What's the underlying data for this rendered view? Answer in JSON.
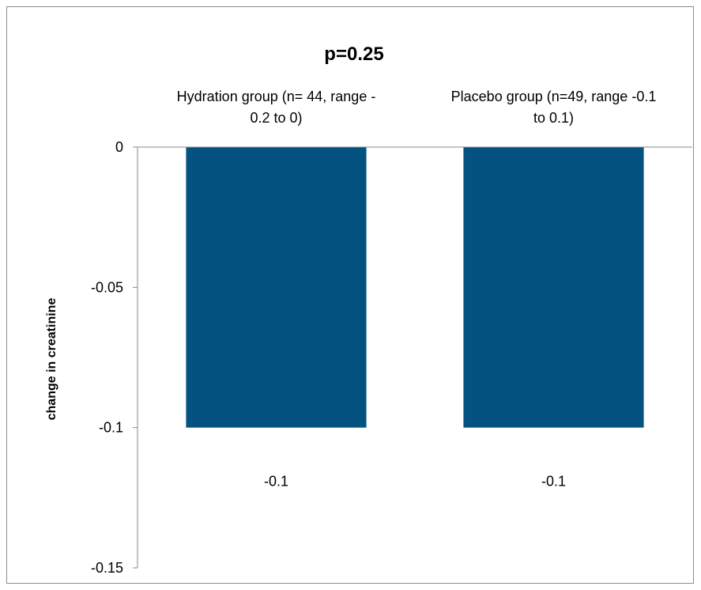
{
  "chart_data": {
    "type": "bar",
    "title": "p=0.25",
    "categories": [
      "Hydration group (n= 44, range -0.2 to 0)",
      "Placebo group (n=49, range -0.1 to 0.1)"
    ],
    "category_label_lines": [
      [
        "Hydration group (n= 44, range -",
        "0.2 to 0)"
      ],
      [
        "Placebo group (n=49, range -0.1",
        "to 0.1)"
      ]
    ],
    "values": [
      -0.1,
      -0.1
    ],
    "data_labels": [
      "-0.1",
      "-0.1"
    ],
    "ylabel": "change in  creatinine",
    "xlabel": "",
    "ylim": [
      -0.15,
      0
    ],
    "yticks": [
      0,
      -0.05,
      -0.1,
      -0.15
    ],
    "ytick_labels": [
      "0",
      "-0.05",
      "-0.1",
      "-0.15"
    ],
    "x_axis_position": "top",
    "grid": false,
    "legend": "none",
    "bar_color": "#03527f"
  }
}
